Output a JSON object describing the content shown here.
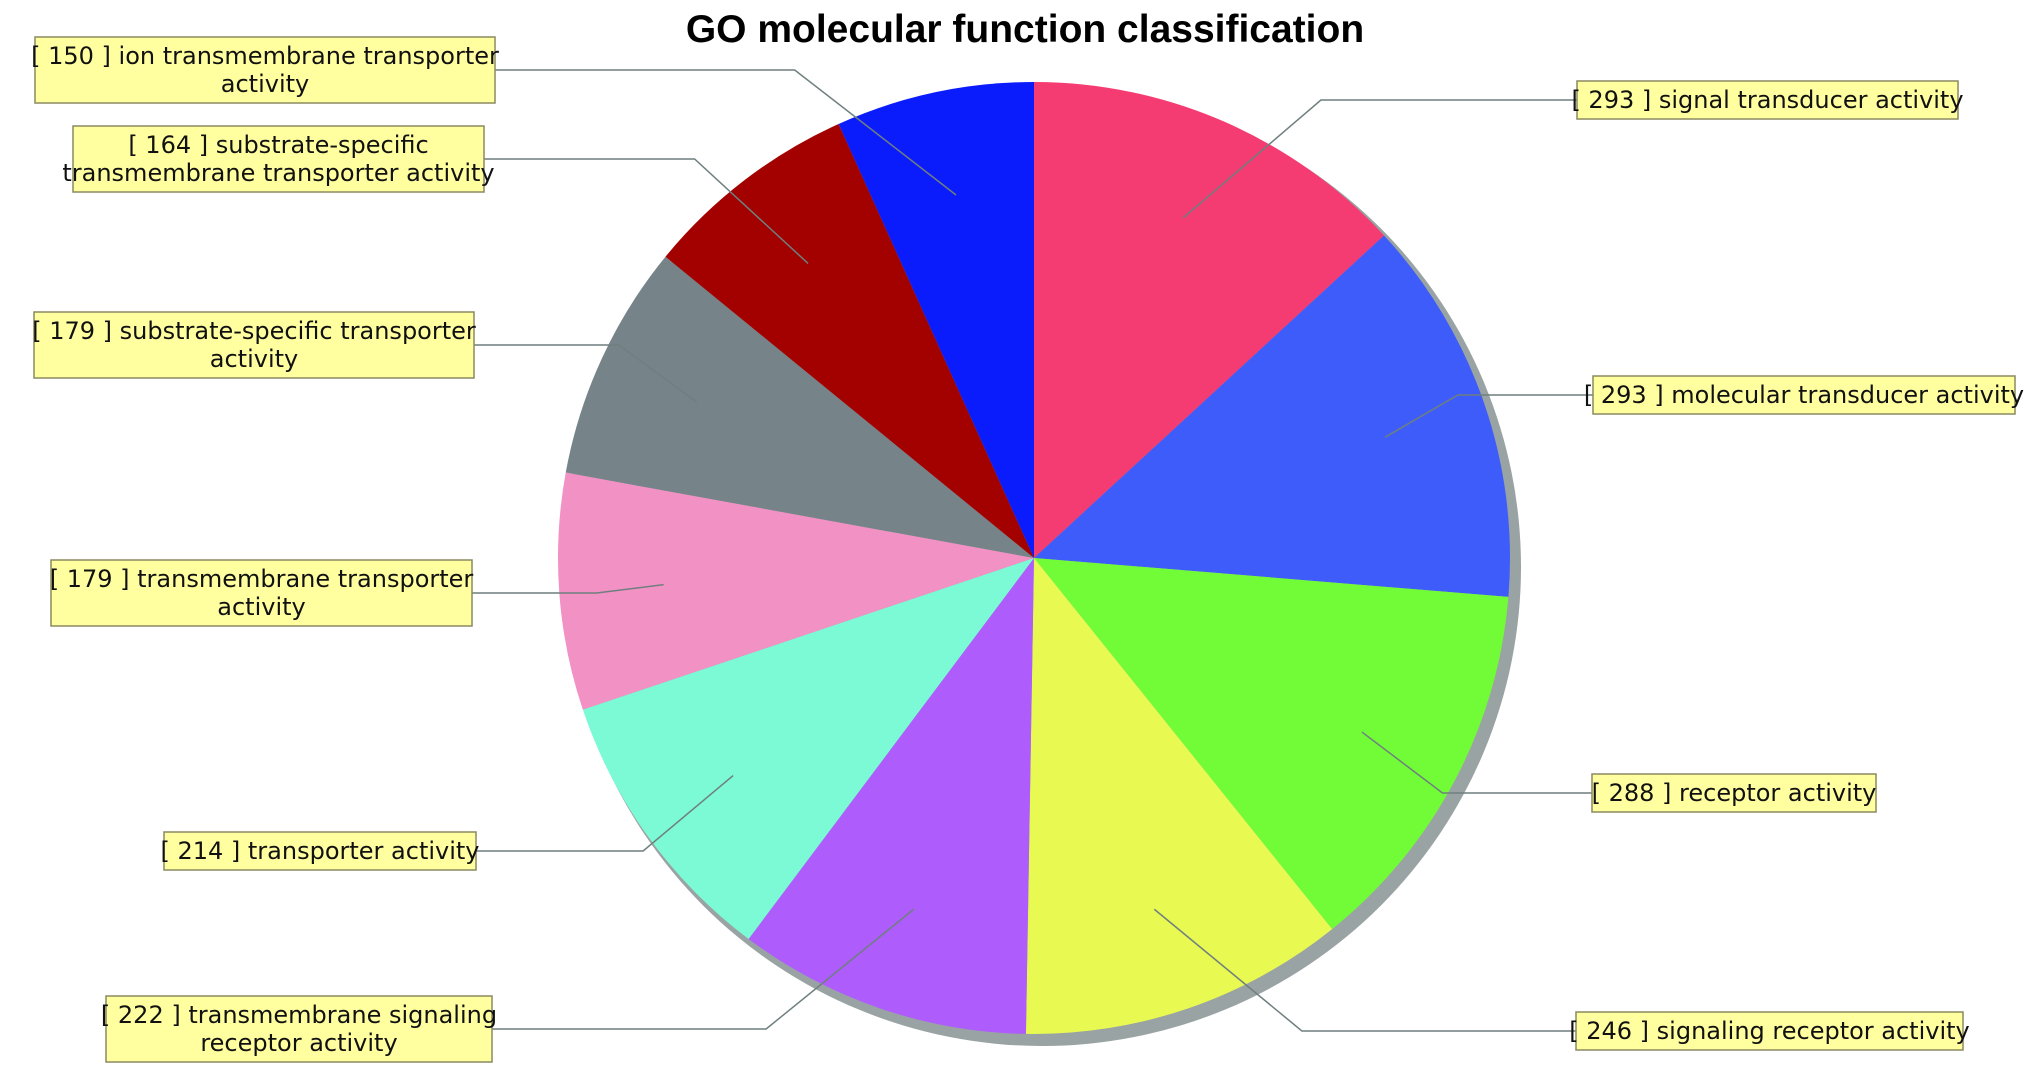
{
  "chart_data": {
    "type": "pie",
    "title": "GO molecular function classification",
    "start": "12 o'clock",
    "direction": "clockwise",
    "legend": "callout labels",
    "slices": [
      {
        "value": 293,
        "label": "signal transducer activity",
        "color": "#f53c72",
        "lines": [
          "[ 293 ] signal transducer activity"
        ]
      },
      {
        "value": 293,
        "label": "molecular transducer activity",
        "color": "#3e5cf9",
        "lines": [
          "[ 293 ] molecular transducer activity"
        ]
      },
      {
        "value": 288,
        "label": "receptor activity",
        "color": "#72fc38",
        "lines": [
          "[ 288 ] receptor activity"
        ]
      },
      {
        "value": 246,
        "label": "signaling receptor activity",
        "color": "#e8fa52",
        "lines": [
          "[ 246 ] signaling receptor activity"
        ]
      },
      {
        "value": 222,
        "label": "transmembrane signaling receptor activity",
        "color": "#ae5cfc",
        "lines": [
          "[ 222 ] transmembrane signaling",
          "receptor activity"
        ]
      },
      {
        "value": 214,
        "label": "transporter activity",
        "color": "#7cfad6",
        "lines": [
          "[ 214 ] transporter activity"
        ]
      },
      {
        "value": 179,
        "label": "transmembrane transporter activity",
        "color": "#f292c4",
        "lines": [
          "[ 179 ] transmembrane transporter",
          "activity"
        ]
      },
      {
        "value": 179,
        "label": "substrate-specific transporter activity",
        "color": "#76848a",
        "lines": [
          "[ 179 ] substrate-specific transporter",
          "activity"
        ]
      },
      {
        "value": 164,
        "label": "substrate-specific transmembrane transporter activity",
        "color": "#a30000",
        "lines": [
          "[ 164 ] substrate-specific",
          "transmembrane transporter activity"
        ]
      },
      {
        "value": 150,
        "label": "ion transmembrane transporter activity",
        "color": "#0a1cfc",
        "lines": [
          "[ 150 ] ion transmembrane transporter",
          "activity"
        ]
      }
    ]
  }
}
